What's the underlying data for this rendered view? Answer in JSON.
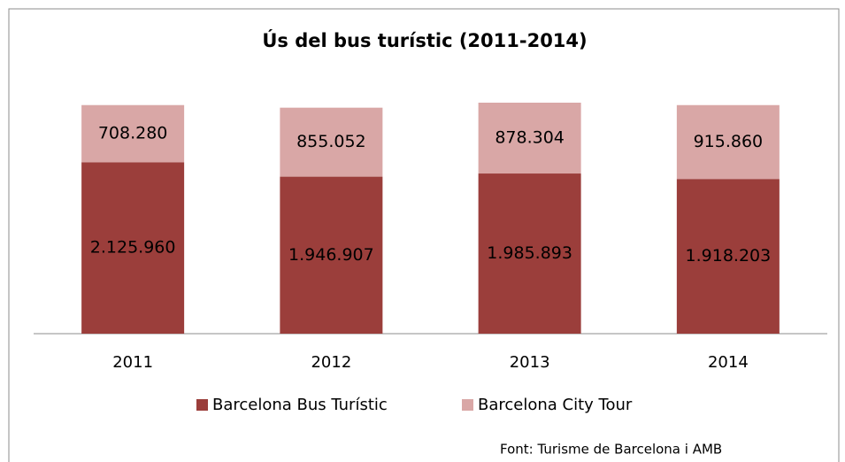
{
  "chart_data": {
    "type": "bar",
    "stacked": true,
    "title": "Ús del bus turístic (2011-2014)",
    "categories": [
      "2011",
      "2012",
      "2013",
      "2014"
    ],
    "series": [
      {
        "name": "Barcelona Bus Turístic",
        "color": "#9b3e3b",
        "values": [
          2125960,
          1946907,
          1985893,
          1918203
        ],
        "value_labels": [
          "2.125.960",
          "1.946.907",
          "1.985.893",
          "1.918.203"
        ]
      },
      {
        "name": "Barcelona City Tour",
        "color": "#d9a7a6",
        "values": [
          708280,
          855052,
          878304,
          915860
        ],
        "value_labels": [
          "708.280",
          "855.052",
          "878.304",
          "915.860"
        ]
      }
    ],
    "legend": "bottom",
    "source": "Font: Turisme de Barcelona i AMB"
  }
}
